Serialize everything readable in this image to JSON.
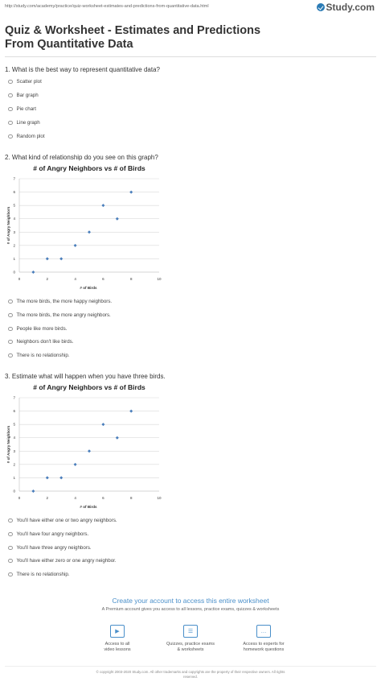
{
  "header": {
    "url": "http://study.com/academy/practice/quiz-worksheet-estimates-and-predictions-from-quantitative-data.html",
    "logo_text": "Study.com"
  },
  "title": "Quiz & Worksheet - Estimates and Predictions From Quantitative Data",
  "questions": [
    {
      "text": "1. What is the best way to represent quantitative data?",
      "options": [
        "Scatter plot",
        "Bar graph",
        "Pie chart",
        "Line graph",
        "Random plot"
      ]
    },
    {
      "text": "2. What kind of relationship do you see on this graph?",
      "options": [
        "The more birds, the more happy neighbors.",
        "The more birds, the more angry neighbors.",
        "People like more birds.",
        "Neighbors don't like birds.",
        "There is no relationship."
      ]
    },
    {
      "text": "3. Estimate what will happen when you have three birds.",
      "options": [
        "You'll have either one or two angry neighbors.",
        "You'll have four angry neighbors.",
        "You'll have three angry neighbors.",
        "You'll have either zero or one angry neighbor.",
        "There is no relationship."
      ]
    }
  ],
  "chart_data": [
    {
      "type": "scatter",
      "title": "# of Angry Neighbors vs # of Birds",
      "xlabel": "# of Birds",
      "ylabel": "# of Angry Neighbors",
      "xlim": [
        0,
        10
      ],
      "ylim": [
        0,
        7
      ],
      "x_ticks": [
        0,
        2,
        4,
        6,
        8,
        10
      ],
      "y_ticks": [
        0,
        1,
        2,
        3,
        4,
        5,
        6,
        7
      ],
      "x": [
        1,
        2,
        3,
        4,
        5,
        6,
        7,
        8
      ],
      "y": [
        0,
        1,
        1,
        2,
        3,
        5,
        4,
        6
      ],
      "grid": "horizontal",
      "color": "#4a7ebb"
    },
    {
      "type": "scatter",
      "title": "# of Angry Neighbors vs # of Birds",
      "xlabel": "# of Birds",
      "ylabel": "# of Angry Neighbors",
      "xlim": [
        0,
        10
      ],
      "ylim": [
        0,
        7
      ],
      "x_ticks": [
        0,
        2,
        4,
        6,
        8,
        10
      ],
      "y_ticks": [
        0,
        1,
        2,
        3,
        4,
        5,
        6,
        7
      ],
      "x": [
        1,
        2,
        3,
        4,
        5,
        6,
        7,
        8
      ],
      "y": [
        0,
        1,
        1,
        2,
        3,
        5,
        4,
        6
      ],
      "grid": "horizontal",
      "color": "#4a7ebb"
    }
  ],
  "cta": {
    "title": "Create your account to access this entire worksheet",
    "subtitle": "A Premium account gives you access to all lessons, practice exams, quizzes & worksheets",
    "features": [
      {
        "icon": "video-icon",
        "line1": "Access to all",
        "line2": "video lessons"
      },
      {
        "icon": "quiz-icon",
        "line1": "Quizzes, practice exams",
        "line2": "& worksheets"
      },
      {
        "icon": "chat-icon",
        "line1": "Access to experts for",
        "line2": "homework questions"
      }
    ]
  },
  "footer": {
    "line1": "© copyright 2003-2020 Study.com. All other trademarks and copyrights are the property of their respective owners. All rights",
    "line2": "reserved."
  }
}
